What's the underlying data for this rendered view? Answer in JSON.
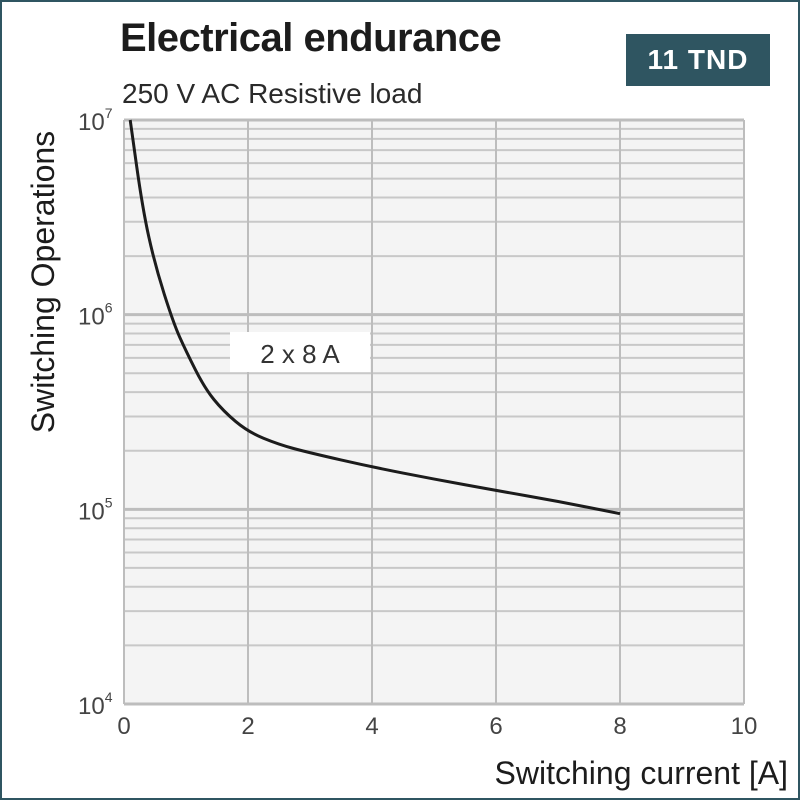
{
  "header": {
    "title": "Electrical endurance",
    "subtitle": "250 V AC Resistive load",
    "badge": "11 TND"
  },
  "colors": {
    "badge_bg": "#2f5561",
    "curve": "#1c1c1c",
    "grid_minor": "#c8c8c8",
    "grid_major": "#bdbdbd",
    "plot_bg": "#f4f4f4"
  },
  "chart_data": {
    "type": "line",
    "title": "Electrical endurance",
    "subtitle": "250 V AC Resistive load",
    "xlabel": "Switching current [A]",
    "ylabel": "Switching Operations",
    "xlim": [
      0,
      10
    ],
    "ylim": [
      10000,
      10000000
    ],
    "yscale": "log",
    "grid": true,
    "x_ticks": [
      "0",
      "2",
      "4",
      "6",
      "8",
      "10"
    ],
    "y_ticks": [
      {
        "base": "10",
        "exp": "4"
      },
      {
        "base": "10",
        "exp": "5"
      },
      {
        "base": "10",
        "exp": "6"
      },
      {
        "base": "10",
        "exp": "7"
      }
    ],
    "annotations": [
      "2 x 8 A"
    ],
    "series": [
      {
        "x": [
          0.1,
          0.3,
          0.5,
          0.8,
          1.0,
          1.3,
          1.6,
          2.0,
          2.5,
          3.0,
          4.0,
          5.0,
          6.0,
          7.0,
          8.0
        ],
        "y": [
          10000000,
          3500000,
          1800000,
          900000,
          650000,
          420000,
          320000,
          250000,
          215000,
          195000,
          165000,
          143000,
          125000,
          110000,
          95000
        ]
      }
    ]
  }
}
